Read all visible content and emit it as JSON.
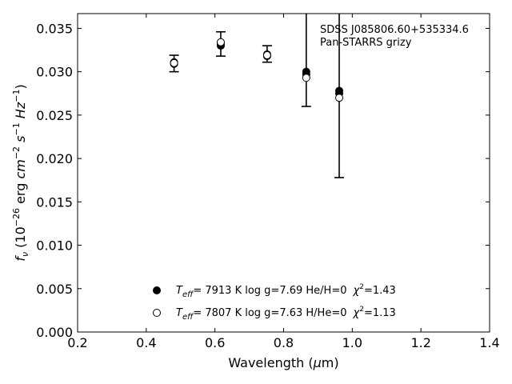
{
  "chart_data": {
    "type": "scatter",
    "xlabel": "Wavelength (μm)",
    "ylabel": "f_ν (10^−26 erg cm^−2 s^−1 Hz^−1)",
    "xlim": [
      0.2,
      1.4
    ],
    "ylim": [
      0.0,
      0.0367
    ],
    "x_ticks": [
      "0.2",
      "0.4",
      "0.6",
      "0.8",
      "1.0",
      "1.2",
      "1.4"
    ],
    "y_ticks": [
      "0.000",
      "0.005",
      "0.010",
      "0.015",
      "0.020",
      "0.025",
      "0.030",
      "0.035"
    ],
    "annotation": {
      "line1": "SDSS J085806.60+535334.6",
      "line2": "Pan-STARRS grizy"
    },
    "observed": {
      "x": [
        0.481,
        0.617,
        0.752,
        0.866,
        0.962
      ],
      "y": [
        0.0309,
        0.0332,
        0.032,
        0.03,
        0.0275
      ],
      "y_err_low": [
        0.03,
        0.0318,
        0.0311,
        0.026,
        0.0178
      ],
      "y_err_high": [
        0.0319,
        0.0346,
        0.033,
        0.0367,
        0.0367
      ]
    },
    "series": [
      {
        "marker": "filled-circle",
        "x": [
          0.481,
          0.617,
          0.752,
          0.866,
          0.962
        ],
        "y": [
          0.0311,
          0.033,
          0.0318,
          0.0297,
          0.0278
        ],
        "legend": {
          "teff_label": "T",
          "teff_sub": "eff",
          "teff_value": "=  7913 K  log g=7.69  He/H=0",
          "chi_label": "χ",
          "chi_sup": "2",
          "chi_value": "=1.43"
        }
      },
      {
        "marker": "open-circle",
        "x": [
          0.481,
          0.617,
          0.752,
          0.866,
          0.962
        ],
        "y": [
          0.031,
          0.0334,
          0.0319,
          0.0293,
          0.027
        ],
        "legend": {
          "teff_label": "T",
          "teff_sub": "eff",
          "teff_value": "=  7807 K  log g=7.63  H/He=0",
          "chi_label": "χ",
          "chi_sup": "2",
          "chi_value": "=1.13"
        }
      }
    ],
    "grid": false,
    "legend_position": "lower-center"
  }
}
